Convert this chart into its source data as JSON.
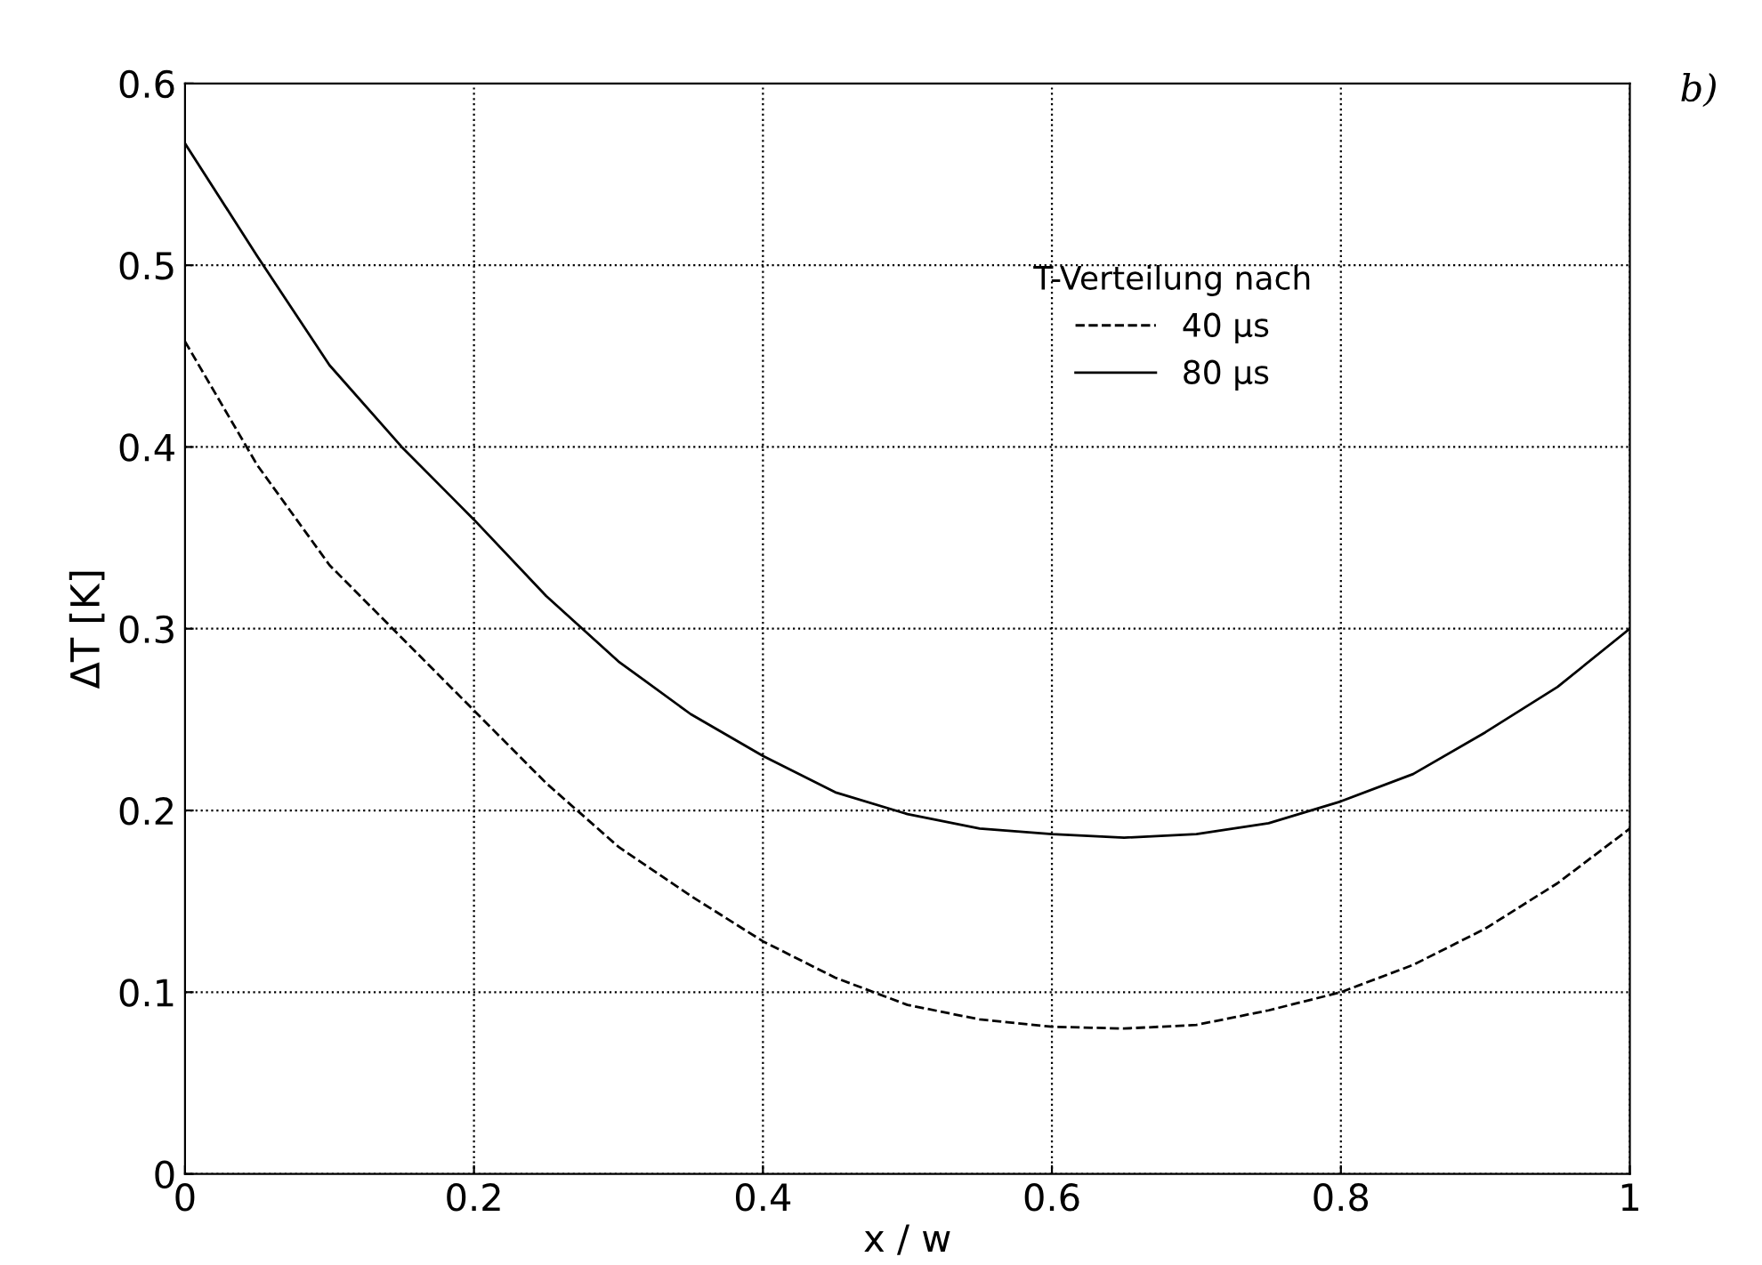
{
  "chart_data": {
    "type": "line",
    "xlabel": "x / w",
    "ylabel": "ΔT [K]",
    "legend_title": "T-Verteilung nach",
    "annotations": [
      "b)"
    ],
    "x": [
      0,
      0.05,
      0.1,
      0.15,
      0.2,
      0.25,
      0.3,
      0.35,
      0.4,
      0.45,
      0.5,
      0.55,
      0.6,
      0.65,
      0.7,
      0.75,
      0.8,
      0.85,
      0.9,
      0.95,
      1
    ],
    "series": [
      {
        "name": "40 μs",
        "color": "#000000",
        "line_style": "dashed",
        "values": [
          0.458,
          0.39,
          0.335,
          0.295,
          0.255,
          0.215,
          0.18,
          0.153,
          0.128,
          0.108,
          0.093,
          0.085,
          0.081,
          0.08,
          0.082,
          0.09,
          0.1,
          0.115,
          0.135,
          0.16,
          0.19
        ]
      },
      {
        "name": "80 μs",
        "color": "#000000",
        "line_style": "solid",
        "values": [
          0.567,
          0.505,
          0.445,
          0.4,
          0.36,
          0.318,
          0.282,
          0.253,
          0.23,
          0.21,
          0.198,
          0.19,
          0.187,
          0.185,
          0.187,
          0.193,
          0.205,
          0.22,
          0.243,
          0.268,
          0.3
        ]
      }
    ],
    "xlim": [
      0,
      1
    ],
    "ylim": [
      0,
      0.6
    ],
    "xticks": [
      0,
      0.2,
      0.4,
      0.6,
      0.8,
      1
    ],
    "yticks": [
      0,
      0.1,
      0.2,
      0.3,
      0.4,
      0.5,
      0.6
    ],
    "grid": true,
    "legend": "top right",
    "marker": "none"
  }
}
